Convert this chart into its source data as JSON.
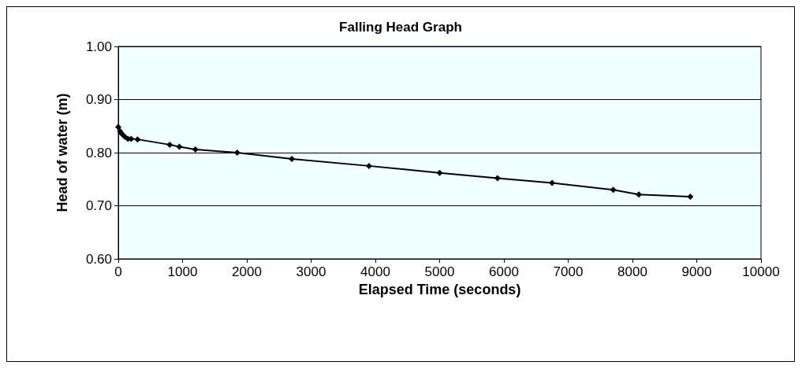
{
  "chart_data": {
    "type": "line",
    "title": "Falling Head Graph",
    "xlabel": "Elapsed Time (seconds)",
    "ylabel": "Head of water (m)",
    "x": [
      0,
      30,
      60,
      100,
      150,
      200,
      300,
      800,
      950,
      1200,
      1850,
      2700,
      3900,
      5000,
      5900,
      6750,
      7700,
      8100,
      8900
    ],
    "series": [
      {
        "color": "#000000",
        "values": [
          0.848,
          0.84,
          0.835,
          0.83,
          0.826,
          0.826,
          0.825,
          0.815,
          0.811,
          0.806,
          0.8,
          0.788,
          0.775,
          0.762,
          0.752,
          0.743,
          0.73,
          0.721,
          0.717
        ]
      }
    ],
    "xlim": [
      0,
      10000
    ],
    "xticks": [
      0,
      1000,
      2000,
      3000,
      4000,
      5000,
      6000,
      7000,
      8000,
      9000,
      10000
    ],
    "ylim": [
      0.6,
      1.0
    ],
    "yticks": [
      {
        "value": 0.6,
        "label": "0.60"
      },
      {
        "value": 0.7,
        "label": "0.70"
      },
      {
        "value": 0.8,
        "label": "0.80"
      },
      {
        "value": 0.9,
        "label": "0.90"
      },
      {
        "value": 1.0,
        "label": "1.00"
      }
    ],
    "grid": "y",
    "marker": "diamond",
    "line_style": "solid"
  }
}
